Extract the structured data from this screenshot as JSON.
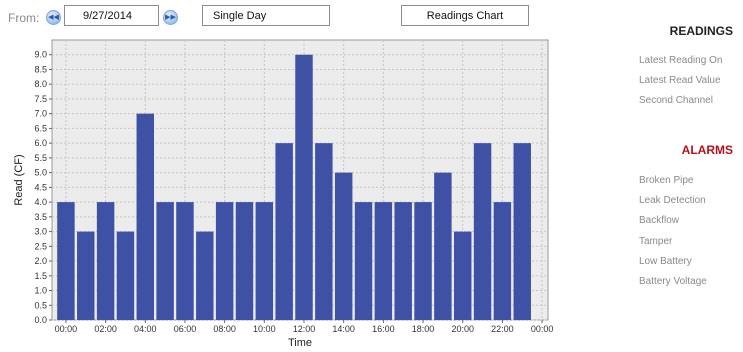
{
  "toolbar": {
    "from_label": "From:",
    "date_value": "9/27/2014",
    "range_value": "Single Day",
    "chart_button": "Readings Chart"
  },
  "chart_data": {
    "type": "bar",
    "categories": [
      "00:00",
      "01:00",
      "02:00",
      "03:00",
      "04:00",
      "05:00",
      "06:00",
      "07:00",
      "08:00",
      "09:00",
      "10:00",
      "11:00",
      "12:00",
      "13:00",
      "14:00",
      "15:00",
      "16:00",
      "17:00",
      "18:00",
      "19:00",
      "20:00",
      "21:00",
      "22:00",
      "23:00"
    ],
    "values": [
      4,
      3,
      4,
      3,
      7,
      4,
      4,
      3,
      4,
      4,
      4,
      6,
      9,
      6,
      5,
      4,
      4,
      4,
      4,
      5,
      3,
      6,
      4,
      6
    ],
    "x_tick_labels": [
      "00:00",
      "02:00",
      "04:00",
      "06:00",
      "08:00",
      "10:00",
      "12:00",
      "14:00",
      "16:00",
      "18:00",
      "20:00",
      "22:00",
      "00:00"
    ],
    "y_ticks": [
      "0.0",
      "0.5",
      "1.0",
      "1.5",
      "2.0",
      "2.5",
      "3.0",
      "3.5",
      "4.0",
      "4.5",
      "5.0",
      "5.5",
      "6.0",
      "6.5",
      "7.0",
      "7.5",
      "8.0",
      "8.5",
      "9.0"
    ],
    "ylim": [
      0,
      9.5
    ],
    "xlabel": "Time",
    "ylabel": "Read (CF)",
    "grid": true,
    "bar_color": "#3f51a5",
    "plot_background": "#ececec"
  },
  "readings": {
    "heading": "READINGS",
    "items": [
      "Latest Reading On",
      "Latest Read Value",
      "Second Channel"
    ]
  },
  "alarms": {
    "heading": "ALARMS",
    "items": [
      "Broken Pipe",
      "Leak Detection",
      "Backflow",
      "Tamper",
      "Low Battery",
      "Battery Voltage"
    ]
  },
  "colors": {
    "alarms_heading": "#b5121b",
    "panel_text": "#8a8a8a"
  },
  "icons": {
    "prev": "double-chevron-left-icon",
    "next": "double-chevron-right-icon"
  }
}
